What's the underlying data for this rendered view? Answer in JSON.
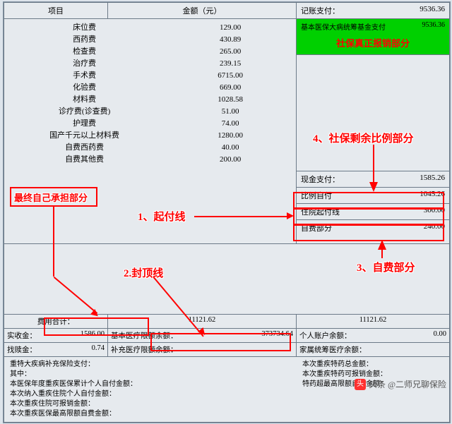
{
  "header": {
    "col1": "项目",
    "col2": "金额（元）",
    "col3": "记账支付：",
    "col3val": "9536.36"
  },
  "items": [
    {
      "name": "床位费",
      "amt": "129.00"
    },
    {
      "name": "西药费",
      "amt": "430.89"
    },
    {
      "name": "检查费",
      "amt": "265.00"
    },
    {
      "name": "治疗费",
      "amt": "239.15"
    },
    {
      "name": "手术费",
      "amt": "6715.00"
    },
    {
      "name": "化验费",
      "amt": "669.00"
    },
    {
      "name": "材料费",
      "amt": "1028.58"
    },
    {
      "name": "诊疗费(诊查费)",
      "amt": "51.00"
    },
    {
      "name": "护理费",
      "amt": "74.00"
    },
    {
      "name": "国产千元以上材料费",
      "amt": "1280.00"
    },
    {
      "name": "自费西药费",
      "amt": "40.00"
    },
    {
      "name": "自费其他费",
      "amt": "200.00"
    }
  ],
  "rightTop": {
    "greenLabel1": "基本医保大病统筹基金支付",
    "greenVal1": "9536.36",
    "bannerText": "社保真正报销部分"
  },
  "cash": {
    "label": "现金支付：",
    "val": "1585.26"
  },
  "rightRows": [
    {
      "label": "比例自付",
      "val": "1045.26"
    },
    {
      "label": "住院起付线",
      "val": "300.00"
    },
    {
      "label": "自费部分",
      "val": "240.00"
    }
  ],
  "annCallouts": {
    "c1": "1、起付线",
    "c2": "2.封顶线",
    "c3": "3、自费部分",
    "c4": "4、社保剩余比例部分",
    "cFinal": "最终自己承担部分"
  },
  "bottom": {
    "feeTotalLabel": "费用合计：",
    "feeTotal": "11121.62",
    "feeTotalR": "11121.62",
    "receivedLabel": "实收金：",
    "received": "1586.00",
    "limitLabel": "基本医疗限额余额：",
    "limit": "373734.64",
    "acctLabel": "个人账户余额：",
    "acct": "0.00",
    "refundLabel": "找赎金：",
    "refund": "0.74",
    "suppLimitLabel": "补充医疗限额余额：",
    "suppLimit": "",
    "famLabel": "家属统筹医疗余额：",
    "fam": ""
  },
  "footerLines": [
    "重特大疾病补充保险支付：",
    "其中：",
    "本医保年度重疾医保累计个人自付金额：",
    "本次纳入重疾住院个人自付金额：",
    "本次重疾住院可报销金额：",
    "本次重疾医保最高限额自费金额："
  ],
  "footerRightLines": [
    "本次重疾特药总金额：",
    "本次重疾特药可报销金额：",
    "特药超最高限额自费金额："
  ],
  "watermark": "头条 @二师兄聊保险"
}
